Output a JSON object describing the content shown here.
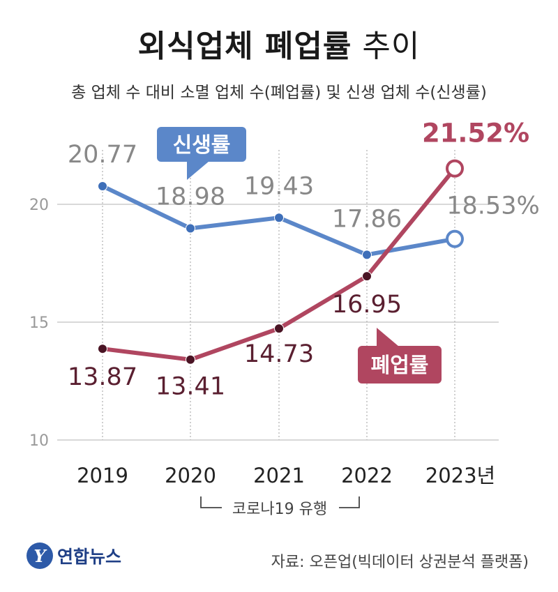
{
  "header": {
    "title_bold": "외식업체 폐업률",
    "title_light": " 추이",
    "subtitle": "총 업체 수 대비 소멸 업체 수(폐업률) 및 신생 업체 수(신생률)"
  },
  "footer": {
    "source": "자료: 오픈업(빅데이터 상권분석 플랫폼)",
    "logo_text": "연합뉴스",
    "logo_mark": "Y"
  },
  "annotation": {
    "covid": "코로나19 유행"
  },
  "colors": {
    "new_rate": "#5b87c9",
    "closure_rate": "#b04660",
    "closure_label": "#5a1f30",
    "new_label": "#888888",
    "grid": "#cccccc"
  },
  "chart_data": {
    "type": "line",
    "categories": [
      "2019",
      "2020",
      "2021",
      "2022",
      "2023년"
    ],
    "ylim": [
      10,
      21.8
    ],
    "yticks": [
      10,
      15,
      20
    ],
    "series": [
      {
        "name": "신생률",
        "values": [
          20.77,
          18.98,
          19.43,
          17.86,
          18.53
        ],
        "labels": [
          "20.77",
          "18.98",
          "19.43",
          "17.86",
          "18.53%"
        ]
      },
      {
        "name": "폐업률",
        "values": [
          13.87,
          13.41,
          14.73,
          16.95,
          21.52
        ],
        "labels": [
          "13.87",
          "13.41",
          "14.73",
          "16.95",
          "21.52%"
        ]
      }
    ]
  }
}
